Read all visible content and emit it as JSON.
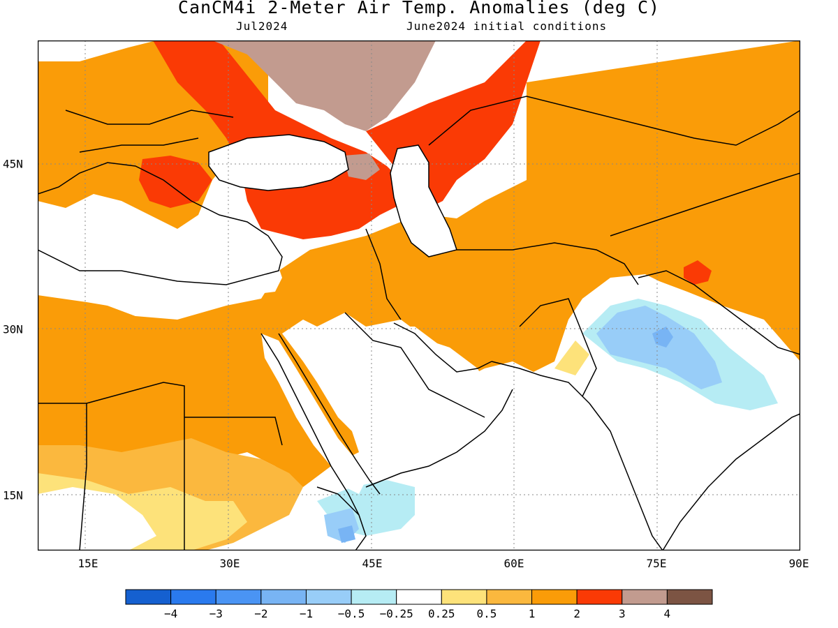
{
  "title": "CanCM4i 2-Meter Air Temp. Anomalies (deg C)",
  "subtitle_left": "Jul2024",
  "subtitle_right": "June2024 initial conditions",
  "x_axis": {
    "ticks": [
      "15E",
      "30E",
      "45E",
      "60E",
      "75E",
      "90E"
    ],
    "range": [
      10,
      90
    ]
  },
  "y_axis": {
    "ticks": [
      "45N",
      "30N",
      "15N"
    ],
    "range": [
      10,
      55
    ]
  },
  "grid": "dotted",
  "colorbar": {
    "colors": [
      "#1560d0",
      "#2a7aee",
      "#4a94f4",
      "#78b4f4",
      "#98cdf8",
      "#b6ecf4",
      "#ffffff",
      "#fde27a",
      "#fbb83e",
      "#fa9c08",
      "#fa3a05",
      "#c29b8f",
      "#7c5443"
    ],
    "labels": [
      "−4",
      "−3",
      "−2",
      "−1",
      "−0.5",
      "−0.25",
      "0.25",
      "0.5",
      "1",
      "2",
      "3",
      "4"
    ]
  },
  "legend": {
    "ocean": "#ffffff",
    "coast": "#000000"
  }
}
